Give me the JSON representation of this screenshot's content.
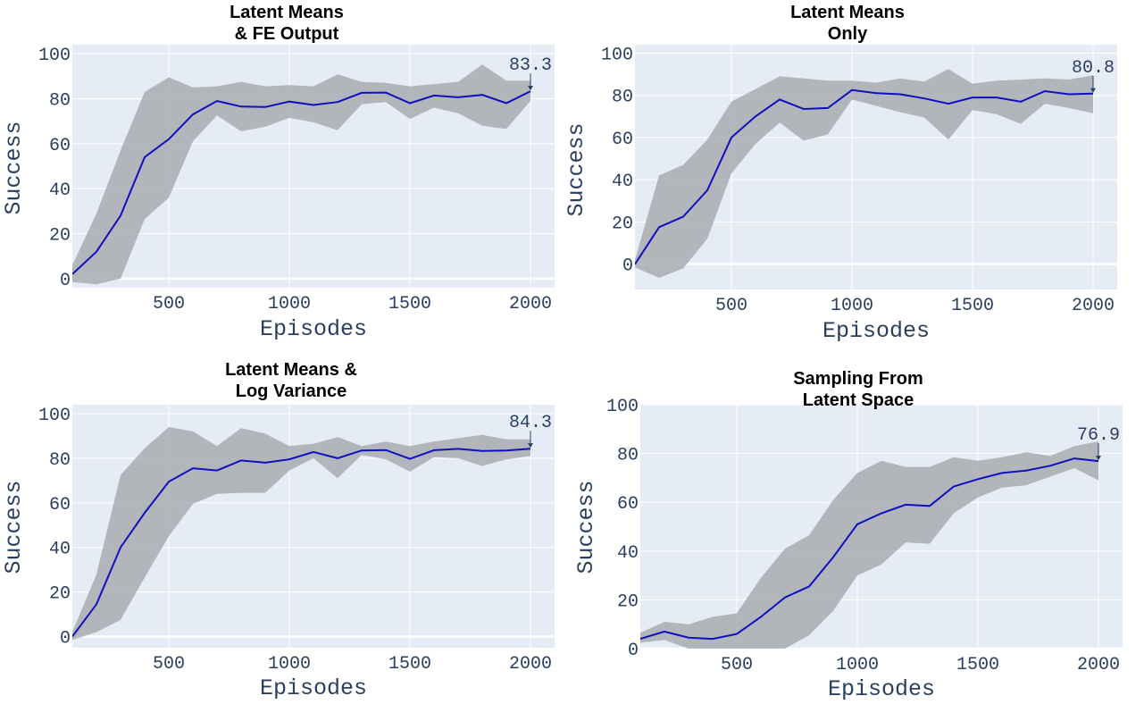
{
  "colors": {
    "plot_bg": "#e5ecf6",
    "grid": "#ffffff",
    "band": "#a9adb0",
    "line": "#1010c0",
    "text": "#2a3f5f"
  },
  "chart_data": [
    {
      "type": "line",
      "title_lines": [
        "Latent Means",
        "& FE Output"
      ],
      "xlabel": "Episodes",
      "ylabel": "Success",
      "xlim": [
        100,
        2100
      ],
      "ylim": [
        -4,
        104
      ],
      "xticks": [
        500,
        1000,
        1500,
        2000
      ],
      "yticks": [
        0,
        20,
        40,
        60,
        80,
        100
      ],
      "x": [
        100,
        200,
        300,
        400,
        500,
        600,
        700,
        800,
        900,
        1000,
        1100,
        1200,
        1300,
        1400,
        1500,
        1600,
        1700,
        1800,
        1900,
        2000
      ],
      "mean": [
        2,
        12,
        28,
        54,
        62,
        73,
        79,
        76.5,
        76.3,
        78.7,
        77.2,
        78.5,
        82.6,
        82.7,
        78,
        81.4,
        80.6,
        81.7,
        78,
        83.3
      ],
      "upper": [
        6,
        29,
        57,
        83,
        89.5,
        85,
        85.5,
        87.5,
        85.5,
        86,
        85.5,
        90.8,
        87.5,
        87,
        85.5,
        86.5,
        87.5,
        95.2,
        88,
        88
      ],
      "lower": [
        -1.5,
        -2.5,
        0,
        26.5,
        36,
        61,
        72.5,
        65.5,
        67.5,
        71.5,
        69.5,
        66,
        77.5,
        78.5,
        71,
        76,
        73.5,
        68,
        66.5,
        79
      ],
      "annotation": {
        "text": "83.3",
        "x": 2000,
        "y": 83.3
      }
    },
    {
      "type": "line",
      "title_lines": [
        "Latent Means",
        "Only"
      ],
      "xlabel": "Episodes",
      "ylabel": "Success",
      "xlim": [
        100,
        2100
      ],
      "ylim": [
        -12,
        104
      ],
      "xticks": [
        500,
        1000,
        1500,
        2000
      ],
      "yticks": [
        0,
        20,
        40,
        60,
        80,
        100
      ],
      "x": [
        100,
        200,
        300,
        400,
        500,
        600,
        700,
        800,
        900,
        1000,
        1100,
        1200,
        1300,
        1400,
        1500,
        1600,
        1700,
        1800,
        1900,
        2000
      ],
      "mean": [
        0,
        17.5,
        22.5,
        35,
        60,
        70,
        78,
        73.5,
        74,
        82.5,
        81,
        80.5,
        78.5,
        76,
        79,
        79,
        77,
        82,
        80.5,
        80.8
      ],
      "upper": [
        2,
        42,
        47,
        59,
        77,
        83,
        89,
        88,
        87,
        87,
        86,
        88,
        86.5,
        92.5,
        85.5,
        87,
        87.5,
        88,
        87.5,
        89.5
      ],
      "lower": [
        -1.5,
        -6.5,
        -2,
        12,
        43,
        57,
        67,
        58.5,
        61.5,
        78,
        75,
        72,
        69.5,
        59,
        73,
        71,
        66.5,
        76,
        74,
        71.5
      ],
      "annotation": {
        "text": "80.8",
        "x": 2000,
        "y": 80.8
      }
    },
    {
      "type": "line",
      "title_lines": [
        "Latent Means &",
        "Log Variance"
      ],
      "xlabel": "Episodes",
      "ylabel": "Success",
      "xlim": [
        100,
        2100
      ],
      "ylim": [
        -5,
        104
      ],
      "xticks": [
        500,
        1000,
        1500,
        2000
      ],
      "yticks": [
        0,
        20,
        40,
        60,
        80,
        100
      ],
      "x": [
        100,
        200,
        300,
        400,
        500,
        600,
        700,
        800,
        900,
        1000,
        1100,
        1200,
        1300,
        1400,
        1500,
        1600,
        1700,
        1800,
        1900,
        2000
      ],
      "mean": [
        0,
        14.5,
        40,
        55.5,
        69.5,
        75.5,
        74.5,
        79,
        78,
        79.5,
        82.8,
        80,
        83.5,
        83.7,
        79.7,
        83.6,
        84.2,
        83.3,
        83.5,
        84.3
      ],
      "upper": [
        2,
        28,
        72.5,
        84.5,
        94,
        92,
        85.5,
        93.5,
        91,
        85.5,
        86.5,
        89.5,
        85.5,
        87.5,
        85.5,
        87.5,
        89,
        90.5,
        88.5,
        88.5
      ],
      "lower": [
        -1.5,
        2,
        7.5,
        26.5,
        45,
        59.5,
        64,
        64.5,
        64.5,
        74.5,
        80,
        71,
        81.5,
        79.5,
        74,
        80.5,
        80,
        76.5,
        79.5,
        81
      ],
      "annotation": {
        "text": "84.3",
        "x": 2000,
        "y": 84.3
      }
    },
    {
      "type": "line",
      "title_lines": [
        "Sampling From",
        "Latent Space"
      ],
      "xlabel": "Episodes",
      "ylabel": "Success",
      "xlim": [
        100,
        2100
      ],
      "ylim": [
        0,
        100
      ],
      "xticks": [
        500,
        1000,
        1500,
        2000
      ],
      "yticks": [
        0,
        20,
        40,
        60,
        80,
        100
      ],
      "x": [
        100,
        200,
        300,
        400,
        500,
        600,
        700,
        800,
        900,
        1000,
        1100,
        1200,
        1300,
        1400,
        1500,
        1600,
        1700,
        1800,
        1900,
        2000
      ],
      "mean": [
        4,
        7,
        4.5,
        4,
        6,
        13,
        21,
        25.5,
        37.5,
        51,
        55.5,
        59,
        58.5,
        66.5,
        69.5,
        72,
        73,
        75,
        78,
        76.9
      ],
      "upper": [
        6.5,
        11,
        10,
        13,
        14.5,
        29,
        41,
        46.5,
        61,
        72,
        77,
        74.5,
        74.5,
        78.5,
        77,
        78.5,
        80.5,
        79,
        83,
        85
      ],
      "lower": [
        2.5,
        3.5,
        0,
        -1,
        -3,
        -3,
        0,
        5.5,
        15.5,
        30,
        34.5,
        43.5,
        43,
        55.5,
        62,
        66,
        67,
        70.5,
        74,
        69
      ],
      "annotation": {
        "text": "76.9",
        "x": 2000,
        "y": 76.9
      }
    }
  ]
}
